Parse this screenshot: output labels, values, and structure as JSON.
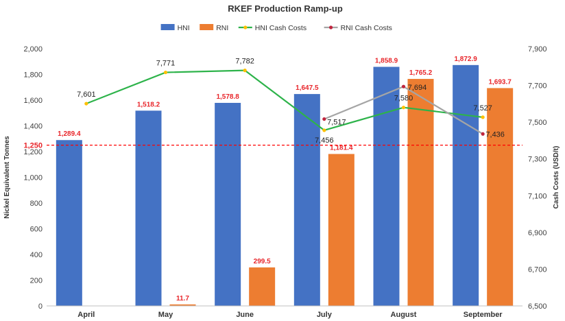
{
  "chart_data": {
    "type": "bar",
    "title": "RKEF Production Ramp-up",
    "categories": [
      "April",
      "May",
      "June",
      "July",
      "August",
      "September"
    ],
    "series": [
      {
        "name": "HNI",
        "kind": "bar",
        "axis": "left",
        "color": "#4472c4",
        "values": [
          1289.4,
          1518.2,
          1578.8,
          1647.5,
          1858.9,
          1872.9
        ],
        "labels": [
          "1,289.4",
          "1,518.2",
          "1,578.8",
          "1,647.5",
          "1,858.9",
          "1,872.9"
        ]
      },
      {
        "name": "RNI",
        "kind": "bar",
        "axis": "left",
        "color": "#ed7d31",
        "values": [
          null,
          11.7,
          299.5,
          1181.4,
          1765.2,
          1693.7
        ],
        "labels": [
          "",
          "11.7",
          "299.5",
          "1,181.4",
          "1,765.2",
          "1,693.7"
        ]
      },
      {
        "name": "HNI Cash Costs",
        "kind": "line",
        "axis": "right",
        "color": "#2db34a",
        "marker_color": "#ffc000",
        "values": [
          7601,
          7771,
          7782,
          7456,
          7580,
          7527
        ],
        "labels": [
          "7,601",
          "7,771",
          "7,782",
          "7,456",
          "7,580",
          "7,527"
        ]
      },
      {
        "name": "RNI Cash Costs",
        "kind": "line",
        "axis": "right",
        "color": "#a5a5a5",
        "marker_color": "#c0263f",
        "values": [
          null,
          null,
          null,
          7517,
          7694,
          7436
        ],
        "labels": [
          "",
          "",
          "",
          "7,517",
          "7,694",
          "7,436"
        ]
      }
    ],
    "ylabel": "Nickel Equivalent Tonnes",
    "ylim": [
      0,
      2000
    ],
    "yticks": [
      "0",
      "200",
      "400",
      "600",
      "800",
      "1,000",
      "1,200",
      "1,400",
      "1,600",
      "1,800",
      "2,000"
    ],
    "y2label": "Cash Costs (USD/t)",
    "y2lim": [
      6500,
      7900
    ],
    "y2ticks": [
      "6,500",
      "6,700",
      "6,900",
      "7,100",
      "7,300",
      "7,500",
      "7,700",
      "7,900"
    ],
    "reference_line": {
      "value": 1250,
      "label": "1,250",
      "color": "#ff0000",
      "style": "dashed"
    },
    "legend_position": "top",
    "grid": false
  }
}
